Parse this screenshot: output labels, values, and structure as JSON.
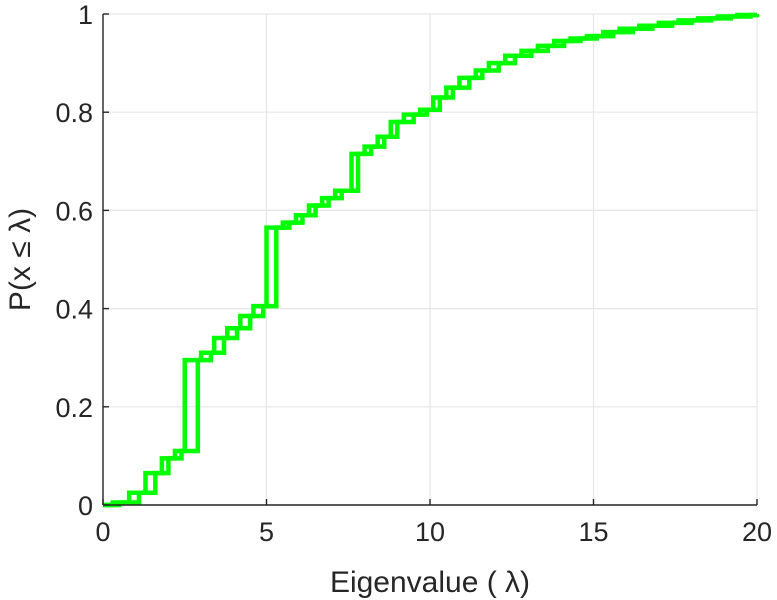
{
  "chart_data": {
    "type": "line",
    "title": "",
    "xlabel": "Eigenvalue (   λ)",
    "ylabel": "P(x ≤ λ)",
    "xlim": [
      0,
      20
    ],
    "ylim": [
      0,
      1
    ],
    "xticks": [
      0,
      5,
      10,
      15,
      20
    ],
    "yticks": [
      0,
      0.2,
      0.4,
      0.6,
      0.8,
      1
    ],
    "xtick_labels": [
      "0",
      "5",
      "10",
      "15",
      "20"
    ],
    "ytick_labels": [
      "0",
      "0.2",
      "0.4",
      "0.6",
      "0.8",
      "1"
    ],
    "grid": true,
    "legend": "none",
    "step": true,
    "series_color": "#00ff00",
    "series": [
      {
        "x": [
          0,
          0.3,
          0.8,
          1.3,
          1.8,
          2.2,
          2.5,
          3.0,
          3.4,
          3.8,
          4.2,
          4.6,
          5.0,
          5.5,
          5.9,
          6.3,
          6.7,
          7.1,
          7.6,
          8.0,
          8.4,
          8.8,
          9.2,
          9.7,
          10.1,
          10.5,
          10.9,
          11.4,
          11.8,
          12.3,
          12.8,
          13.3,
          13.8,
          14.3,
          14.8,
          15.3,
          15.8,
          16.4,
          17.0,
          17.6,
          18.2,
          18.8,
          19.4,
          20.0
        ],
        "y": [
          0,
          0.005,
          0.025,
          0.065,
          0.095,
          0.11,
          0.295,
          0.31,
          0.34,
          0.36,
          0.385,
          0.405,
          0.565,
          0.575,
          0.59,
          0.61,
          0.625,
          0.64,
          0.715,
          0.73,
          0.75,
          0.78,
          0.795,
          0.805,
          0.83,
          0.85,
          0.87,
          0.885,
          0.9,
          0.915,
          0.925,
          0.935,
          0.945,
          0.95,
          0.955,
          0.963,
          0.97,
          0.976,
          0.982,
          0.987,
          0.991,
          0.995,
          0.998,
          1.0
        ]
      },
      {
        "x": [
          0,
          0.5,
          1.1,
          1.6,
          2.0,
          2.4,
          2.9,
          3.3,
          3.7,
          4.1,
          4.5,
          4.9,
          5.3,
          5.7,
          6.1,
          6.5,
          6.9,
          7.3,
          7.8,
          8.2,
          8.6,
          9.0,
          9.5,
          9.9,
          10.3,
          10.7,
          11.2,
          11.6,
          12.1,
          12.6,
          13.1,
          13.6,
          14.1,
          14.6,
          15.1,
          15.6,
          16.2,
          16.8,
          17.4,
          18.0,
          18.6,
          19.2,
          19.8,
          20.0
        ],
        "y": [
          0,
          0.005,
          0.025,
          0.065,
          0.095,
          0.11,
          0.295,
          0.31,
          0.34,
          0.36,
          0.385,
          0.405,
          0.565,
          0.575,
          0.59,
          0.61,
          0.625,
          0.64,
          0.715,
          0.73,
          0.75,
          0.78,
          0.795,
          0.805,
          0.83,
          0.85,
          0.87,
          0.885,
          0.9,
          0.915,
          0.925,
          0.935,
          0.945,
          0.95,
          0.955,
          0.963,
          0.97,
          0.976,
          0.982,
          0.987,
          0.991,
          0.995,
          0.998,
          1.0
        ]
      }
    ]
  }
}
